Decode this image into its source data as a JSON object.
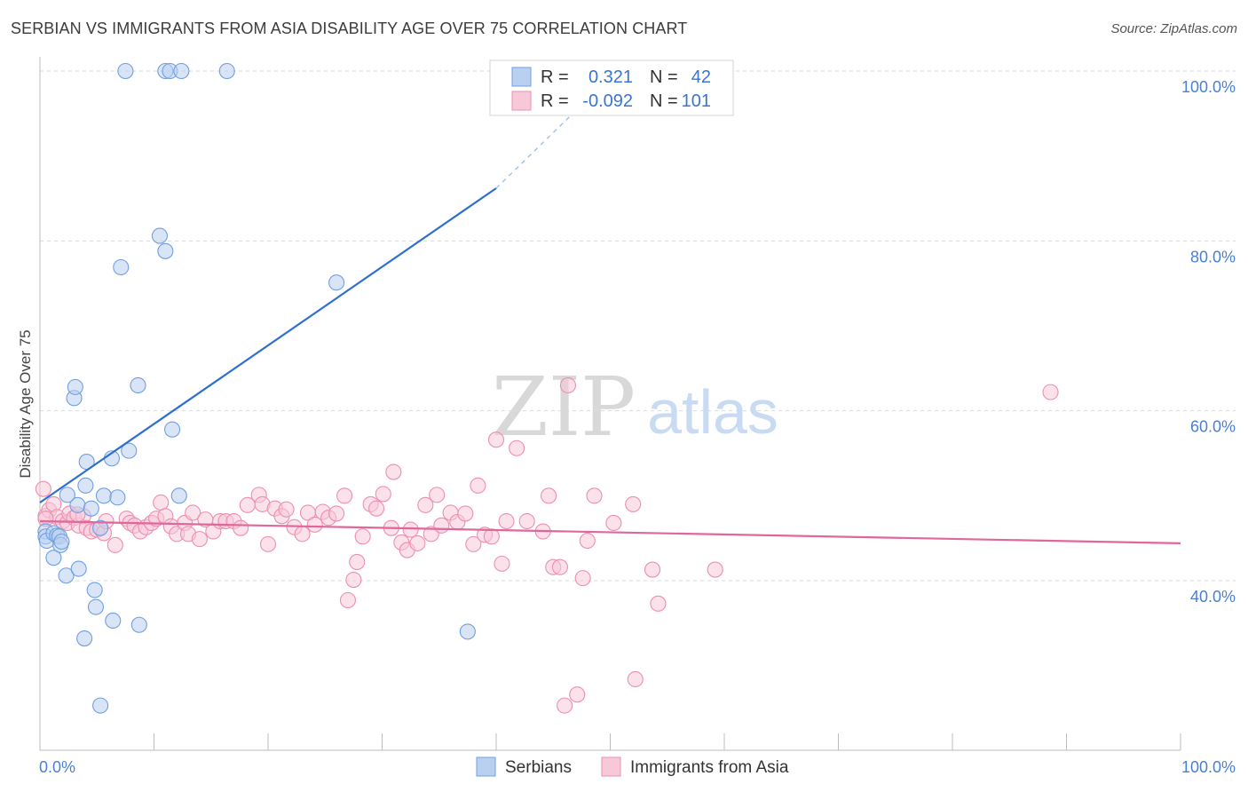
{
  "title": "SERBIAN VS IMMIGRANTS FROM ASIA DISABILITY AGE OVER 75 CORRELATION CHART",
  "source": "Source: ZipAtlas.com",
  "watermark": {
    "zip": "ZIP",
    "atlas": "atlas"
  },
  "colors": {
    "blue": "#6f9fe0",
    "blue_fill": "#b9d0f1",
    "blue_line": "#2e6fd0",
    "pink": "#ec8fb0",
    "pink_fill": "#f7c9d8",
    "pink_line": "#e0679a",
    "grid": "#d9d9d9",
    "tick_text": "#4a7fd4"
  },
  "legend": {
    "r_label": "R =",
    "n_label": "N =",
    "rows": [
      {
        "series": "Serbians",
        "r": "0.321",
        "n": "42"
      },
      {
        "series": "Immigrants from Asia",
        "r": "-0.092",
        "n": "101"
      }
    ]
  },
  "bottom_legend": [
    "Serbians",
    "Immigrants from Asia"
  ],
  "chart_data": {
    "type": "scatter",
    "title": "SERBIAN VS IMMIGRANTS FROM ASIA DISABILITY AGE OVER 75 CORRELATION CHART",
    "xlabel": "",
    "ylabel": "Disability Age Over 75",
    "xlim": [
      0,
      100
    ],
    "ylim": [
      20,
      104
    ],
    "x_tick_labels": [
      {
        "value": 0,
        "label": "0.0%"
      },
      {
        "value": 100,
        "label": "100.0%"
      }
    ],
    "y_tick_labels": [
      {
        "value": 40,
        "label": "40.0%"
      },
      {
        "value": 60,
        "label": "60.0%"
      },
      {
        "value": 80,
        "label": "80.0%"
      },
      {
        "value": 100,
        "label": "100.0%"
      }
    ],
    "x_minor_ticks": [
      0,
      10,
      20,
      30,
      40,
      50,
      60,
      70,
      80,
      90,
      100
    ],
    "series": [
      {
        "name": "Serbians",
        "r": 0.321,
        "n": 42,
        "trend": {
          "x0": 0,
          "y0": 49.2,
          "x1": 40,
          "y1": 86.2,
          "dash_to_x": 51,
          "dash_to_y": 100.6
        },
        "points": [
          [
            0.5,
            45.8
          ],
          [
            0.5,
            45.2
          ],
          [
            0.6,
            44.7
          ],
          [
            1.2,
            45.6
          ],
          [
            1.2,
            42.7
          ],
          [
            1.5,
            45.3
          ],
          [
            1.7,
            45.2
          ],
          [
            1.8,
            44.2
          ],
          [
            1.9,
            44.6
          ],
          [
            2.3,
            40.6
          ],
          [
            3.0,
            61.5
          ],
          [
            3.1,
            62.8
          ],
          [
            3.4,
            41.4
          ],
          [
            3.3,
            48.9
          ],
          [
            2.4,
            50.1
          ],
          [
            4.1,
            54.0
          ],
          [
            4.0,
            51.2
          ],
          [
            4.5,
            48.5
          ],
          [
            4.8,
            38.9
          ],
          [
            4.9,
            36.9
          ],
          [
            5.3,
            46.2
          ],
          [
            5.6,
            50.0
          ],
          [
            6.3,
            54.4
          ],
          [
            6.4,
            35.3
          ],
          [
            6.8,
            49.8
          ],
          [
            7.1,
            76.9
          ],
          [
            7.8,
            55.3
          ],
          [
            8.6,
            63.0
          ],
          [
            8.7,
            34.8
          ],
          [
            10.5,
            80.6
          ],
          [
            11.0,
            78.8
          ],
          [
            11.6,
            57.8
          ],
          [
            12.2,
            50.0
          ],
          [
            3.9,
            33.2
          ],
          [
            5.3,
            25.3
          ],
          [
            26.0,
            75.1
          ],
          [
            37.5,
            34.0
          ],
          [
            7.5,
            100.0
          ],
          [
            11.0,
            100.0
          ],
          [
            11.4,
            100.0
          ],
          [
            12.4,
            100.0
          ],
          [
            16.4,
            100.0
          ]
        ]
      },
      {
        "name": "Immigrants from Asia",
        "r": -0.092,
        "n": 101,
        "trend": {
          "x0": 0,
          "y0": 47.0,
          "x1": 100,
          "y1": 44.4
        },
        "points": [
          [
            0.3,
            50.8
          ],
          [
            0.5,
            47.6
          ],
          [
            0.8,
            48.3
          ],
          [
            1.2,
            49.0
          ],
          [
            1.5,
            47.5
          ],
          [
            2.0,
            47.0
          ],
          [
            2.4,
            46.8
          ],
          [
            2.6,
            47.9
          ],
          [
            3.0,
            47.4
          ],
          [
            3.4,
            46.5
          ],
          [
            3.8,
            47.6
          ],
          [
            4.1,
            46.2
          ],
          [
            4.5,
            45.8
          ],
          [
            5.0,
            46.0
          ],
          [
            5.6,
            45.6
          ],
          [
            5.8,
            47.0
          ],
          [
            6.6,
            44.2
          ],
          [
            7.6,
            47.3
          ],
          [
            7.9,
            46.8
          ],
          [
            8.3,
            46.5
          ],
          [
            8.8,
            45.8
          ],
          [
            9.3,
            46.3
          ],
          [
            9.8,
            46.8
          ],
          [
            10.2,
            47.3
          ],
          [
            10.6,
            49.2
          ],
          [
            11.0,
            47.6
          ],
          [
            11.5,
            46.4
          ],
          [
            12.0,
            45.5
          ],
          [
            12.7,
            46.8
          ],
          [
            13.0,
            45.5
          ],
          [
            13.4,
            48.0
          ],
          [
            14.0,
            44.9
          ],
          [
            14.5,
            47.2
          ],
          [
            15.2,
            45.8
          ],
          [
            15.8,
            47.0
          ],
          [
            16.3,
            47.0
          ],
          [
            17.0,
            47.0
          ],
          [
            17.6,
            46.2
          ],
          [
            18.2,
            48.9
          ],
          [
            19.2,
            50.1
          ],
          [
            19.5,
            49.0
          ],
          [
            20.0,
            44.3
          ],
          [
            20.6,
            48.5
          ],
          [
            21.2,
            47.6
          ],
          [
            21.6,
            48.4
          ],
          [
            22.3,
            46.3
          ],
          [
            23.0,
            45.5
          ],
          [
            23.5,
            48.0
          ],
          [
            24.1,
            46.6
          ],
          [
            24.8,
            48.1
          ],
          [
            25.3,
            47.4
          ],
          [
            26.0,
            47.9
          ],
          [
            26.7,
            50.0
          ],
          [
            27.0,
            37.7
          ],
          [
            27.5,
            40.1
          ],
          [
            27.8,
            42.2
          ],
          [
            28.3,
            45.2
          ],
          [
            29.0,
            49.0
          ],
          [
            29.5,
            48.5
          ],
          [
            30.1,
            50.2
          ],
          [
            30.8,
            46.2
          ],
          [
            31.0,
            52.8
          ],
          [
            31.7,
            44.5
          ],
          [
            32.2,
            43.6
          ],
          [
            32.5,
            46.0
          ],
          [
            33.1,
            44.4
          ],
          [
            33.8,
            48.9
          ],
          [
            34.3,
            45.5
          ],
          [
            34.8,
            50.1
          ],
          [
            35.2,
            46.5
          ],
          [
            36.0,
            48.0
          ],
          [
            36.6,
            46.9
          ],
          [
            37.3,
            47.9
          ],
          [
            38.0,
            44.3
          ],
          [
            38.4,
            51.2
          ],
          [
            39.0,
            45.4
          ],
          [
            39.6,
            45.2
          ],
          [
            40.0,
            56.6
          ],
          [
            40.5,
            42.0
          ],
          [
            40.9,
            47.0
          ],
          [
            41.8,
            55.6
          ],
          [
            42.7,
            47.0
          ],
          [
            44.1,
            45.8
          ],
          [
            44.6,
            50.0
          ],
          [
            45.0,
            41.6
          ],
          [
            45.6,
            41.6
          ],
          [
            46.0,
            25.3
          ],
          [
            46.3,
            63.0
          ],
          [
            47.1,
            26.6
          ],
          [
            47.6,
            40.3
          ],
          [
            48.0,
            44.7
          ],
          [
            48.6,
            50.0
          ],
          [
            50.3,
            46.8
          ],
          [
            52.0,
            49.0
          ],
          [
            52.2,
            28.4
          ],
          [
            53.7,
            41.3
          ],
          [
            54.2,
            37.3
          ],
          [
            59.2,
            41.3
          ],
          [
            88.6,
            62.2
          ],
          [
            0.5,
            47.3
          ],
          [
            3.3,
            47.8
          ]
        ]
      }
    ]
  }
}
